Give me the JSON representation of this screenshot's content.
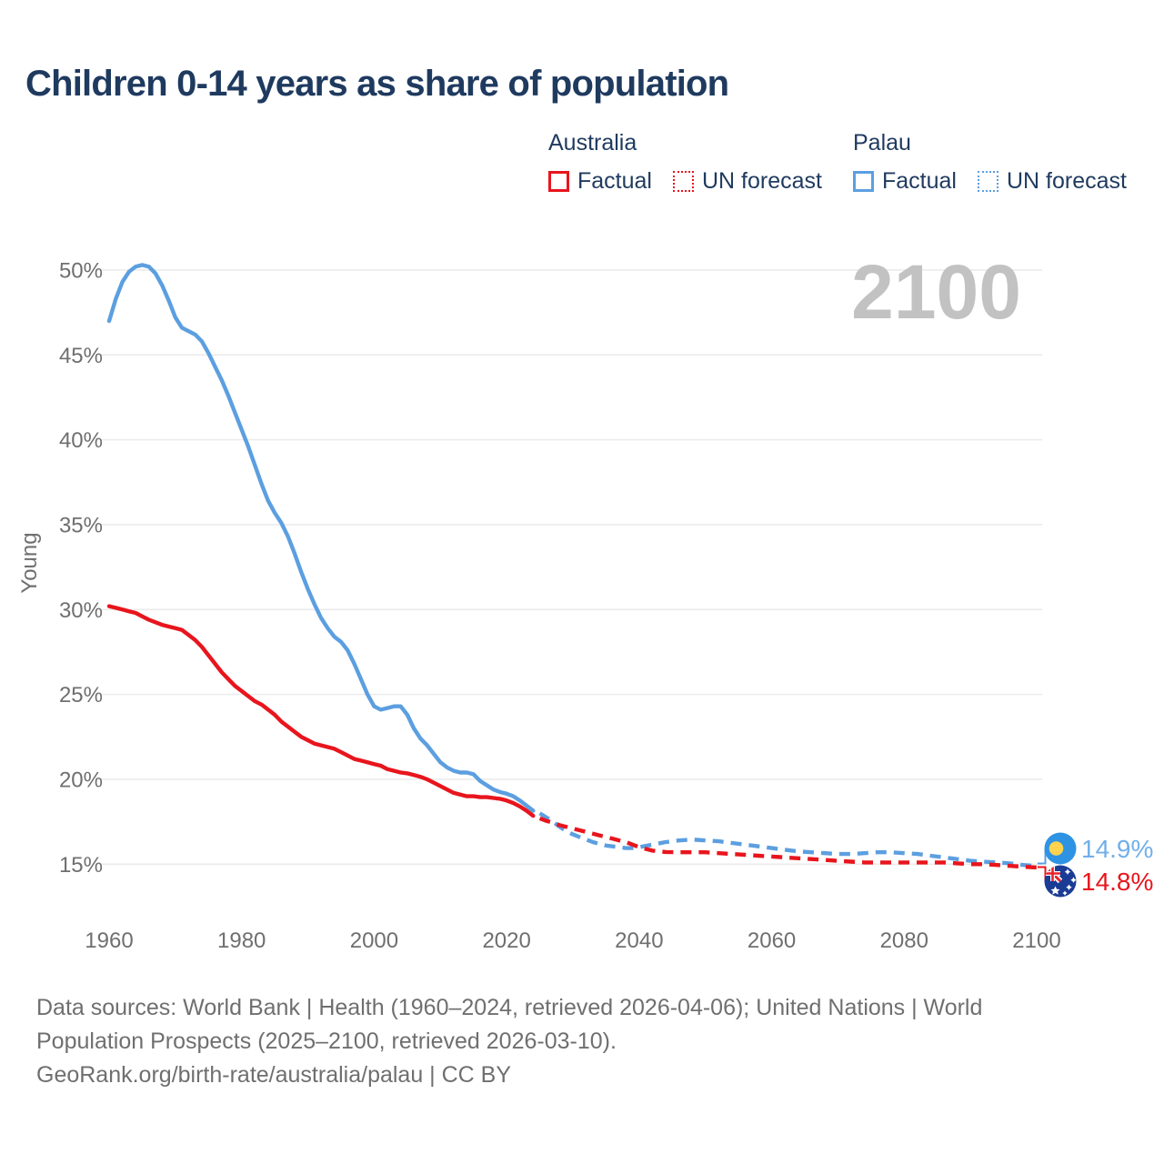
{
  "header": {
    "title": "Children 0-14 years as share of population"
  },
  "legend": {
    "groups": [
      {
        "label": "Australia",
        "color": "#E8151D",
        "items": [
          {
            "label": "Factual",
            "style": "solid"
          },
          {
            "label": "UN forecast",
            "style": "dotted"
          }
        ]
      },
      {
        "label": "Palau",
        "color": "#5C9FE0",
        "items": [
          {
            "label": "Factual",
            "style": "solid"
          },
          {
            "label": "UN forecast",
            "style": "dotted"
          }
        ]
      }
    ]
  },
  "chart_data": {
    "type": "line",
    "title": "Children 0-14 years as share of population",
    "xlabel": "",
    "ylabel": "Young",
    "watermark": "2100",
    "grid": true,
    "x_axis": {
      "range": [
        1958,
        2103
      ],
      "ticks": [
        1960,
        1980,
        2000,
        2020,
        2040,
        2060,
        2080,
        2100
      ]
    },
    "y_axis": {
      "range": [
        13.5,
        51.5
      ],
      "ticks": [
        15,
        20,
        25,
        30,
        35,
        40,
        45,
        50
      ],
      "tick_suffix": "%"
    },
    "series": [
      {
        "name": "Palau — Factual",
        "color": "#5C9FE0",
        "style": "solid",
        "points": [
          [
            1960,
            47.0
          ],
          [
            1961,
            48.3
          ],
          [
            1962,
            49.3
          ],
          [
            1963,
            49.9
          ],
          [
            1964,
            50.2
          ],
          [
            1965,
            50.3
          ],
          [
            1966,
            50.2
          ],
          [
            1967,
            49.8
          ],
          [
            1968,
            49.1
          ],
          [
            1969,
            48.2
          ],
          [
            1970,
            47.2
          ],
          [
            1971,
            46.6
          ],
          [
            1972,
            46.4
          ],
          [
            1973,
            46.2
          ],
          [
            1974,
            45.8
          ],
          [
            1975,
            45.1
          ],
          [
            1976,
            44.3
          ],
          [
            1977,
            43.5
          ],
          [
            1978,
            42.6
          ],
          [
            1979,
            41.6
          ],
          [
            1980,
            40.6
          ],
          [
            1981,
            39.6
          ],
          [
            1982,
            38.5
          ],
          [
            1983,
            37.4
          ],
          [
            1984,
            36.4
          ],
          [
            1985,
            35.7
          ],
          [
            1986,
            35.1
          ],
          [
            1987,
            34.3
          ],
          [
            1988,
            33.3
          ],
          [
            1989,
            32.2
          ],
          [
            1990,
            31.2
          ],
          [
            1991,
            30.3
          ],
          [
            1992,
            29.5
          ],
          [
            1993,
            28.9
          ],
          [
            1994,
            28.4
          ],
          [
            1995,
            28.1
          ],
          [
            1996,
            27.6
          ],
          [
            1997,
            26.8
          ],
          [
            1998,
            25.9
          ],
          [
            1999,
            25.0
          ],
          [
            2000,
            24.3
          ],
          [
            2001,
            24.1
          ],
          [
            2002,
            24.2
          ],
          [
            2003,
            24.3
          ],
          [
            2004,
            24.3
          ],
          [
            2005,
            23.8
          ],
          [
            2006,
            23.0
          ],
          [
            2007,
            22.4
          ],
          [
            2008,
            22.0
          ],
          [
            2009,
            21.5
          ],
          [
            2010,
            21.0
          ],
          [
            2011,
            20.7
          ],
          [
            2012,
            20.5
          ],
          [
            2013,
            20.4
          ],
          [
            2014,
            20.4
          ],
          [
            2015,
            20.3
          ],
          [
            2016,
            19.9
          ],
          [
            2017,
            19.65
          ],
          [
            2018,
            19.4
          ],
          [
            2019,
            19.25
          ],
          [
            2020,
            19.15
          ],
          [
            2021,
            19.0
          ],
          [
            2022,
            18.75
          ],
          [
            2023,
            18.45
          ],
          [
            2024,
            18.15
          ]
        ]
      },
      {
        "name": "Palau — UN forecast",
        "color": "#5C9FE0",
        "style": "dashed",
        "points": [
          [
            2025,
            18.0
          ],
          [
            2026,
            17.75
          ],
          [
            2027,
            17.5
          ],
          [
            2028,
            17.2
          ],
          [
            2029,
            16.95
          ],
          [
            2030,
            16.75
          ],
          [
            2031,
            16.6
          ],
          [
            2032,
            16.45
          ],
          [
            2033,
            16.3
          ],
          [
            2034,
            16.2
          ],
          [
            2035,
            16.1
          ],
          [
            2036,
            16.05
          ],
          [
            2037,
            16.0
          ],
          [
            2038,
            15.95
          ],
          [
            2039,
            15.95
          ],
          [
            2040,
            16.0
          ],
          [
            2042,
            16.15
          ],
          [
            2044,
            16.3
          ],
          [
            2046,
            16.4
          ],
          [
            2048,
            16.45
          ],
          [
            2050,
            16.4
          ],
          [
            2052,
            16.35
          ],
          [
            2054,
            16.25
          ],
          [
            2056,
            16.15
          ],
          [
            2058,
            16.05
          ],
          [
            2060,
            15.95
          ],
          [
            2062,
            15.85
          ],
          [
            2064,
            15.75
          ],
          [
            2066,
            15.7
          ],
          [
            2068,
            15.65
          ],
          [
            2070,
            15.6
          ],
          [
            2072,
            15.6
          ],
          [
            2074,
            15.65
          ],
          [
            2076,
            15.7
          ],
          [
            2078,
            15.7
          ],
          [
            2080,
            15.65
          ],
          [
            2082,
            15.6
          ],
          [
            2084,
            15.5
          ],
          [
            2086,
            15.4
          ],
          [
            2088,
            15.3
          ],
          [
            2090,
            15.2
          ],
          [
            2092,
            15.15
          ],
          [
            2094,
            15.1
          ],
          [
            2096,
            15.05
          ],
          [
            2098,
            14.95
          ],
          [
            2100,
            14.9
          ]
        ]
      },
      {
        "name": "Australia — Factual",
        "color": "#E8151D",
        "style": "solid",
        "points": [
          [
            1960,
            30.2
          ],
          [
            1961,
            30.1
          ],
          [
            1962,
            30.0
          ],
          [
            1963,
            29.9
          ],
          [
            1964,
            29.8
          ],
          [
            1965,
            29.6
          ],
          [
            1966,
            29.4
          ],
          [
            1967,
            29.25
          ],
          [
            1968,
            29.1
          ],
          [
            1969,
            29.0
          ],
          [
            1970,
            28.9
          ],
          [
            1971,
            28.8
          ],
          [
            1972,
            28.5
          ],
          [
            1973,
            28.2
          ],
          [
            1974,
            27.8
          ],
          [
            1975,
            27.3
          ],
          [
            1976,
            26.8
          ],
          [
            1977,
            26.3
          ],
          [
            1978,
            25.9
          ],
          [
            1979,
            25.5
          ],
          [
            1980,
            25.2
          ],
          [
            1981,
            24.9
          ],
          [
            1982,
            24.6
          ],
          [
            1983,
            24.4
          ],
          [
            1984,
            24.1
          ],
          [
            1985,
            23.8
          ],
          [
            1986,
            23.4
          ],
          [
            1987,
            23.1
          ],
          [
            1988,
            22.8
          ],
          [
            1989,
            22.5
          ],
          [
            1990,
            22.3
          ],
          [
            1991,
            22.1
          ],
          [
            1992,
            22.0
          ],
          [
            1993,
            21.9
          ],
          [
            1994,
            21.8
          ],
          [
            1995,
            21.6
          ],
          [
            1996,
            21.4
          ],
          [
            1997,
            21.2
          ],
          [
            1998,
            21.1
          ],
          [
            1999,
            21.0
          ],
          [
            2000,
            20.9
          ],
          [
            2001,
            20.8
          ],
          [
            2002,
            20.6
          ],
          [
            2003,
            20.5
          ],
          [
            2004,
            20.4
          ],
          [
            2005,
            20.35
          ],
          [
            2006,
            20.25
          ],
          [
            2007,
            20.15
          ],
          [
            2008,
            20.0
          ],
          [
            2009,
            19.8
          ],
          [
            2010,
            19.6
          ],
          [
            2011,
            19.4
          ],
          [
            2012,
            19.2
          ],
          [
            2013,
            19.1
          ],
          [
            2014,
            19.0
          ],
          [
            2015,
            19.0
          ],
          [
            2016,
            18.95
          ],
          [
            2017,
            18.95
          ],
          [
            2018,
            18.9
          ],
          [
            2019,
            18.85
          ],
          [
            2020,
            18.75
          ],
          [
            2021,
            18.6
          ],
          [
            2022,
            18.4
          ],
          [
            2023,
            18.15
          ],
          [
            2024,
            17.85
          ]
        ]
      },
      {
        "name": "Australia — UN forecast",
        "color": "#E8151D",
        "style": "dashed",
        "points": [
          [
            2025,
            17.7
          ],
          [
            2026,
            17.55
          ],
          [
            2027,
            17.45
          ],
          [
            2028,
            17.3
          ],
          [
            2029,
            17.2
          ],
          [
            2030,
            17.1
          ],
          [
            2031,
            17.0
          ],
          [
            2032,
            16.9
          ],
          [
            2033,
            16.8
          ],
          [
            2034,
            16.7
          ],
          [
            2035,
            16.6
          ],
          [
            2036,
            16.5
          ],
          [
            2037,
            16.4
          ],
          [
            2038,
            16.3
          ],
          [
            2039,
            16.15
          ],
          [
            2040,
            16.0
          ],
          [
            2041,
            15.9
          ],
          [
            2042,
            15.8
          ],
          [
            2044,
            15.72
          ],
          [
            2046,
            15.7
          ],
          [
            2048,
            15.7
          ],
          [
            2050,
            15.7
          ],
          [
            2052,
            15.65
          ],
          [
            2054,
            15.6
          ],
          [
            2056,
            15.55
          ],
          [
            2058,
            15.5
          ],
          [
            2060,
            15.45
          ],
          [
            2062,
            15.4
          ],
          [
            2064,
            15.35
          ],
          [
            2066,
            15.3
          ],
          [
            2068,
            15.25
          ],
          [
            2070,
            15.2
          ],
          [
            2072,
            15.15
          ],
          [
            2074,
            15.1
          ],
          [
            2076,
            15.1
          ],
          [
            2078,
            15.1
          ],
          [
            2080,
            15.1
          ],
          [
            2082,
            15.1
          ],
          [
            2084,
            15.1
          ],
          [
            2086,
            15.1
          ],
          [
            2088,
            15.05
          ],
          [
            2090,
            15.0
          ],
          [
            2092,
            15.0
          ],
          [
            2094,
            14.95
          ],
          [
            2096,
            14.9
          ],
          [
            2098,
            14.85
          ],
          [
            2100,
            14.8
          ]
        ]
      }
    ],
    "end_labels": [
      {
        "country": "Palau",
        "text": "14.9%",
        "color": "#72AFE9",
        "flag": "palau"
      },
      {
        "country": "Australia",
        "text": "14.8%",
        "color": "#E8151D",
        "flag": "australia"
      }
    ]
  },
  "footer": {
    "line1": "Data sources: World Bank | Health (1960–2024, retrieved 2026-04-06); United Nations | World",
    "line2": "Population Prospects (2025–2100, retrieved 2026-03-10).",
    "line3": "GeoRank.org/birth-rate/australia/palau | CC BY"
  }
}
